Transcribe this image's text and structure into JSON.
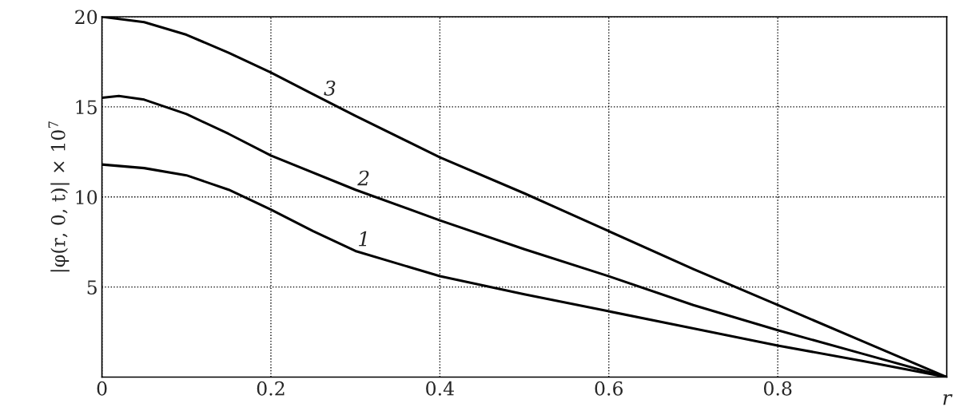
{
  "chart_data": {
    "type": "line",
    "xlabel": "r",
    "ylabel": "|φ(r, 0, t)| × 10$^{7}$",
    "xlim": [
      0,
      1
    ],
    "ylim": [
      0,
      20
    ],
    "xticks": [
      0,
      0.2,
      0.4,
      0.6,
      0.8
    ],
    "yticks": [
      5,
      10,
      15,
      20
    ],
    "grid": true,
    "line_style": "solid",
    "marker": "none",
    "series": [
      {
        "color": "#000000",
        "x": [
          0,
          0.05,
          0.1,
          0.15,
          0.2,
          0.25,
          0.3,
          0.4,
          0.5,
          0.6,
          0.7,
          0.8,
          0.9,
          1.0
        ],
        "values": [
          11.8,
          11.6,
          11.2,
          10.4,
          9.3,
          8.1,
          7.0,
          5.6,
          4.6,
          3.65,
          2.7,
          1.75,
          0.9,
          0
        ]
      },
      {
        "color": "#000000",
        "x": [
          0,
          0.02,
          0.05,
          0.1,
          0.15,
          0.2,
          0.3,
          0.4,
          0.5,
          0.6,
          0.7,
          0.8,
          0.9,
          1.0
        ],
        "values": [
          15.5,
          15.6,
          15.4,
          14.6,
          13.5,
          12.3,
          10.4,
          8.7,
          7.1,
          5.6,
          4.0,
          2.6,
          1.3,
          0
        ]
      },
      {
        "color": "#000000",
        "x": [
          0,
          0.05,
          0.1,
          0.15,
          0.2,
          0.25,
          0.3,
          0.4,
          0.5,
          0.6,
          0.7,
          0.8,
          0.9,
          1.0
        ],
        "values": [
          20.0,
          19.7,
          19.0,
          18.0,
          16.9,
          15.7,
          14.5,
          12.2,
          10.2,
          8.1,
          6.0,
          4.0,
          2.0,
          0
        ]
      }
    ],
    "annotations": [
      "1",
      "2",
      "3"
    ]
  }
}
